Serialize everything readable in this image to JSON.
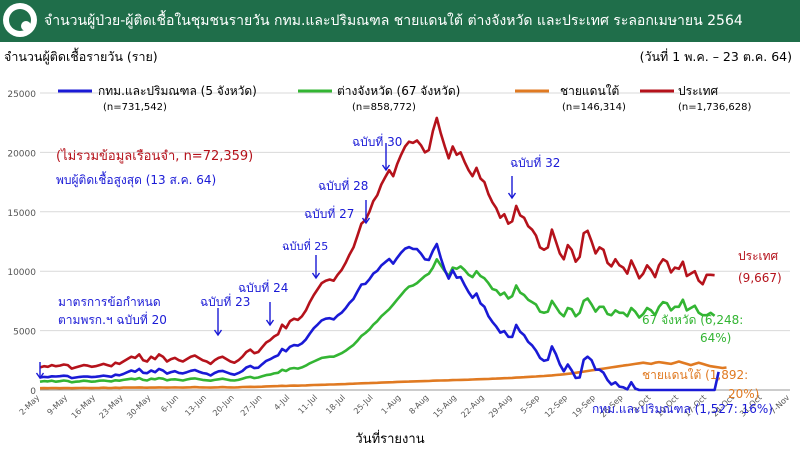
{
  "header": {
    "title": "จำนวนผู้ป่วย-ผู้ติดเชื้อในชุมชนรายวัน กทม.และปริมณฑล ชายแดนใต้ ต่างจังหวัด และประเทศ ระลอกเมษายน 2564"
  },
  "colors": {
    "header_bg": "#1f6e4a",
    "bkk": "#1a1ad6",
    "provinces": "#33b533",
    "south": "#e07a22",
    "country": "#b5121b"
  },
  "chart_data": {
    "type": "line",
    "title": "จำนวนผู้ป่วย-ผู้ติดเชื้อในชุมชนรายวัน กทม.และปริมณฑล ชายแดนใต้ ต่างจังหวัด และประเทศ ระลอกเมษายน 2564",
    "ylabel": "จำนวนผู้ติดเชื้อรายวัน (ราย)",
    "xlabel": "วันที่รายงาน",
    "period": "(วันที่ 1 พ.ค. – 23 ต.ค. 64)",
    "ylim": [
      0,
      25000
    ],
    "yticks": [
      "25000",
      "20000",
      "15000",
      "10000",
      "5000",
      "0"
    ],
    "x_tick_labels": [
      "2-May",
      "9-May",
      "16-May",
      "23-May",
      "30-May",
      "6-Jun",
      "13-Jun",
      "20-Jun",
      "27-Jun",
      "4-Jul",
      "11-Jul",
      "18-Jul",
      "25-Jul",
      "1-Aug",
      "8-Aug",
      "15-Aug",
      "22-Aug",
      "29-Aug",
      "5-Sep",
      "12-Sep",
      "19-Sep",
      "26-Sep",
      "3-Oct",
      "10-Oct",
      "17-Oct",
      "24-Oct",
      "31-Oct",
      "7-Nov"
    ],
    "grid": true,
    "legend": [
      {
        "label": "กทม.และปริมณฑล (5 จังหวัด)",
        "sub": "(n=731,542)"
      },
      {
        "label": "ต่างจังหวัด (67 จังหวัด)",
        "sub": "(n=858,772)"
      },
      {
        "label": "ชายแดนใต้",
        "sub": "(n=146,314)"
      },
      {
        "label": "ประเทศ",
        "sub": "(n=1,736,628)"
      }
    ],
    "series": [
      {
        "name": "ประเทศ",
        "key": "country",
        "values": [
          1900,
          2000,
          1950,
          2100,
          2000,
          2050,
          2150,
          2100,
          1800,
          1900,
          2000,
          2100,
          2050,
          1950,
          2000,
          2100,
          2200,
          2100,
          2000,
          2300,
          2200,
          2400,
          2600,
          2800,
          2700,
          3000,
          2500,
          2400,
          2800,
          2600,
          3000,
          2800,
          2400,
          2600,
          2700,
          2500,
          2400,
          2600,
          2800,
          2900,
          2700,
          2500,
          2400,
          2200,
          2500,
          2700,
          2800,
          2600,
          2400,
          2300,
          2500,
          2800,
          3200,
          3400,
          3100,
          3200,
          3600,
          4000,
          4200,
          4500,
          4700,
          5500,
          5200,
          5800,
          6000,
          5900,
          6200,
          6700,
          7400,
          8000,
          8500,
          9000,
          9200,
          9300,
          9200,
          9700,
          10100,
          10700,
          11400,
          12000,
          13000,
          14000,
          14300,
          15000,
          15900,
          16400,
          17300,
          17900,
          18500,
          18000,
          19000,
          19800,
          20500,
          20900,
          20800,
          21000,
          20600,
          20000,
          20200,
          21800,
          22900,
          21600,
          20500,
          19500,
          20500,
          19800,
          20000,
          19200,
          18500,
          18000,
          18700,
          17800,
          17500,
          16500,
          15800,
          15300,
          14500,
          14800,
          14000,
          14200,
          15500,
          14700,
          14500,
          13800,
          13500,
          13000,
          12000,
          11800,
          12000,
          13500,
          12500,
          11500,
          11000,
          12200,
          11800,
          10800,
          11200,
          13200,
          13400,
          12500,
          11500,
          12000,
          11800,
          10700,
          10400,
          11000,
          10500,
          10300,
          9800,
          10900,
          10200,
          9400,
          9800,
          10500,
          10100,
          9500,
          10500,
          11000,
          10800,
          9900,
          10300,
          10200,
          10800,
          9600,
          9800,
          10000,
          9200,
          8900,
          9700,
          9700,
          9667
        ]
      },
      {
        "name": "ต่างจังหวัด (67 จังหวัด)",
        "key": "provinces",
        "values": [
          700,
          750,
          720,
          780,
          700,
          740,
          800,
          760,
          650,
          700,
          720,
          780,
          750,
          700,
          720,
          780,
          800,
          760,
          720,
          820,
          780,
          850,
          900,
          950,
          900,
          1000,
          850,
          800,
          950,
          900,
          1000,
          950,
          820,
          880,
          900,
          850,
          800,
          880,
          950,
          980,
          920,
          850,
          820,
          780,
          850,
          900,
          950,
          880,
          820,
          800,
          850,
          950,
          1050,
          1100,
          1000,
          1050,
          1150,
          1250,
          1300,
          1400,
          1450,
          1700,
          1600,
          1800,
          1850,
          1800,
          1900,
          2050,
          2250,
          2400,
          2550,
          2700,
          2750,
          2800,
          2800,
          2950,
          3100,
          3300,
          3550,
          3800,
          4150,
          4550,
          4800,
          5100,
          5500,
          5800,
          6200,
          6500,
          6800,
          7200,
          7600,
          8000,
          8400,
          8700,
          8800,
          9000,
          9300,
          9600,
          9800,
          10300,
          11000,
          10500,
          10000,
          9600,
          10300,
          10200,
          10400,
          10100,
          9700,
          9500,
          10000,
          9600,
          9400,
          9000,
          8500,
          8400,
          8000,
          8200,
          7700,
          7900,
          8800,
          8200,
          8000,
          7600,
          7400,
          7200,
          6600,
          6500,
          6600,
          7500,
          7000,
          6500,
          6200,
          6900,
          6800,
          6200,
          6500,
          7500,
          7700,
          7200,
          6600,
          7000,
          7000,
          6400,
          6300,
          6700,
          6500,
          6500,
          6200,
          6900,
          6600,
          6100,
          6400,
          6900,
          6700,
          6300,
          7000,
          7400,
          7300,
          6700,
          7000,
          7000,
          7600,
          6700,
          6900,
          7100,
          6500,
          6300,
          6300,
          6500,
          6248
        ]
      },
      {
        "name": "ชายแดนใต้",
        "key": "south",
        "values": [
          150,
          160,
          150,
          170,
          160,
          150,
          160,
          170,
          150,
          160,
          170,
          180,
          170,
          160,
          170,
          180,
          190,
          180,
          170,
          190,
          180,
          200,
          200,
          210,
          200,
          220,
          200,
          190,
          210,
          200,
          220,
          210,
          200,
          210,
          220,
          210,
          200,
          220,
          230,
          240,
          230,
          220,
          210,
          200,
          220,
          230,
          240,
          230,
          220,
          210,
          230,
          250,
          260,
          270,
          260,
          270,
          280,
          300,
          310,
          320,
          330,
          350,
          340,
          360,
          370,
          360,
          380,
          390,
          400,
          420,
          430,
          440,
          450,
          460,
          460,
          480,
          490,
          500,
          520,
          530,
          550,
          560,
          570,
          580,
          600,
          610,
          620,
          640,
          650,
          660,
          680,
          690,
          700,
          710,
          720,
          730,
          740,
          750,
          760,
          780,
          790,
          800,
          810,
          820,
          830,
          840,
          850,
          860,
          870,
          880,
          900,
          910,
          920,
          930,
          950,
          960,
          980,
          990,
          1000,
          1020,
          1040,
          1060,
          1080,
          1100,
          1120,
          1140,
          1160,
          1180,
          1200,
          1230,
          1260,
          1290,
          1320,
          1360,
          1400,
          1450,
          1500,
          1550,
          1600,
          1650,
          1700,
          1750,
          1800,
          1850,
          1900,
          1950,
          2000,
          2050,
          2100,
          2150,
          2200,
          2250,
          2300,
          2250,
          2200,
          2300,
          2350,
          2300,
          2250,
          2200,
          2300,
          2400,
          2300,
          2200,
          2100,
          2200,
          2300,
          2200,
          2100,
          2000,
          1950,
          1900,
          1850,
          1892
        ]
      },
      {
        "name": "กทม.และปริมณฑล (5 จังหวัด)",
        "key": "bkk",
        "values": [
          1050,
          1100,
          1080,
          1150,
          1140,
          1160,
          1200,
          1170,
          1000,
          1050,
          1100,
          1140,
          1130,
          1090,
          1110,
          1150,
          1210,
          1160,
          1110,
          1290,
          1240,
          1350,
          1500,
          1640,
          1540,
          1780,
          1450,
          1410,
          1640,
          1500,
          1780,
          1640,
          1380,
          1510,
          1580,
          1440,
          1400,
          1500,
          1620,
          1680,
          1550,
          1430,
          1370,
          1220,
          1430,
          1570,
          1610,
          1490,
          1360,
          1290,
          1420,
          1600,
          1890,
          2030,
          1840,
          1880,
          2170,
          2450,
          2590,
          2780,
          2920,
          3450,
          3260,
          3640,
          3780,
          3740,
          3920,
          4260,
          4750,
          5200,
          5520,
          5860,
          6000,
          6040,
          5940,
          6270,
          6510,
          6880,
          7330,
          7670,
          8300,
          8880,
          8930,
          9320,
          9800,
          10030,
          10480,
          10760,
          11030,
          10640,
          11120,
          11560,
          11900,
          12030,
          11880,
          11860,
          11480,
          11000,
          10940,
          11720,
          12290,
          11110,
          10090,
          9380,
          10080,
          9450,
          9500,
          8840,
          8240,
          7760,
          8120,
          7290,
          7010,
          6220,
          5730,
          5340,
          4830,
          4960,
          4480,
          4460,
          5480,
          4900,
          4620,
          4060,
          3750,
          3320,
          2700,
          2460,
          2540,
          3670,
          3020,
          2160,
          1570,
          2150,
          1650,
          1010,
          1050,
          2540,
          2800,
          2510,
          1720,
          1710,
          1460,
          840,
          460,
          650,
          290,
          230,
          50,
          650,
          130,
          0,
          0,
          0,
          0,
          0,
          0,
          0,
          0,
          0,
          0,
          0,
          0,
          0,
          0,
          0,
          0,
          0,
          0,
          0,
          0,
          1527
        ]
      }
    ],
    "annotations": [
      {
        "text": "(ไม่รวมข้อมูลเรือนจำ, n=72,359)",
        "color": "#b5121b"
      },
      {
        "text": "พบผู้ติดเชื้อสูงสุด (13 ส.ค. 64)",
        "color": "#1a1ad6"
      },
      {
        "text": "มาตรการข้อกำหนด",
        "color": "#1a1ad6"
      },
      {
        "text": "ตามพรก.ฯ ฉบับที่ 20",
        "color": "#1a1ad6"
      },
      {
        "text": "ฉบับที่ 23",
        "color": "#1a1ad6"
      },
      {
        "text": "ฉบับที่ 24",
        "color": "#1a1ad6"
      },
      {
        "text": "ฉบับที่ 25",
        "color": "#1a1ad6"
      },
      {
        "text": "ฉบับที่ 27",
        "color": "#1a1ad6"
      },
      {
        "text": "ฉบับที่ 28",
        "color": "#1a1ad6"
      },
      {
        "text": "ฉบับที่ 30",
        "color": "#1a1ad6"
      },
      {
        "text": "ฉบับที่ 32",
        "color": "#1a1ad6"
      }
    ],
    "end_labels": [
      {
        "text": "ประเทศ",
        "key": "country"
      },
      {
        "text": "(9,667)",
        "key": "country"
      },
      {
        "text": "67 จังหวัด (6,248:",
        "key": "provinces"
      },
      {
        "text": "64%)",
        "key": "provinces"
      },
      {
        "text": "ชายแดนใต้ (1,892:",
        "key": "south"
      },
      {
        "text": "20%)",
        "key": "south"
      },
      {
        "text": "กทม.และปริมณฑล (1,527: 16%)",
        "key": "bkk"
      }
    ]
  }
}
